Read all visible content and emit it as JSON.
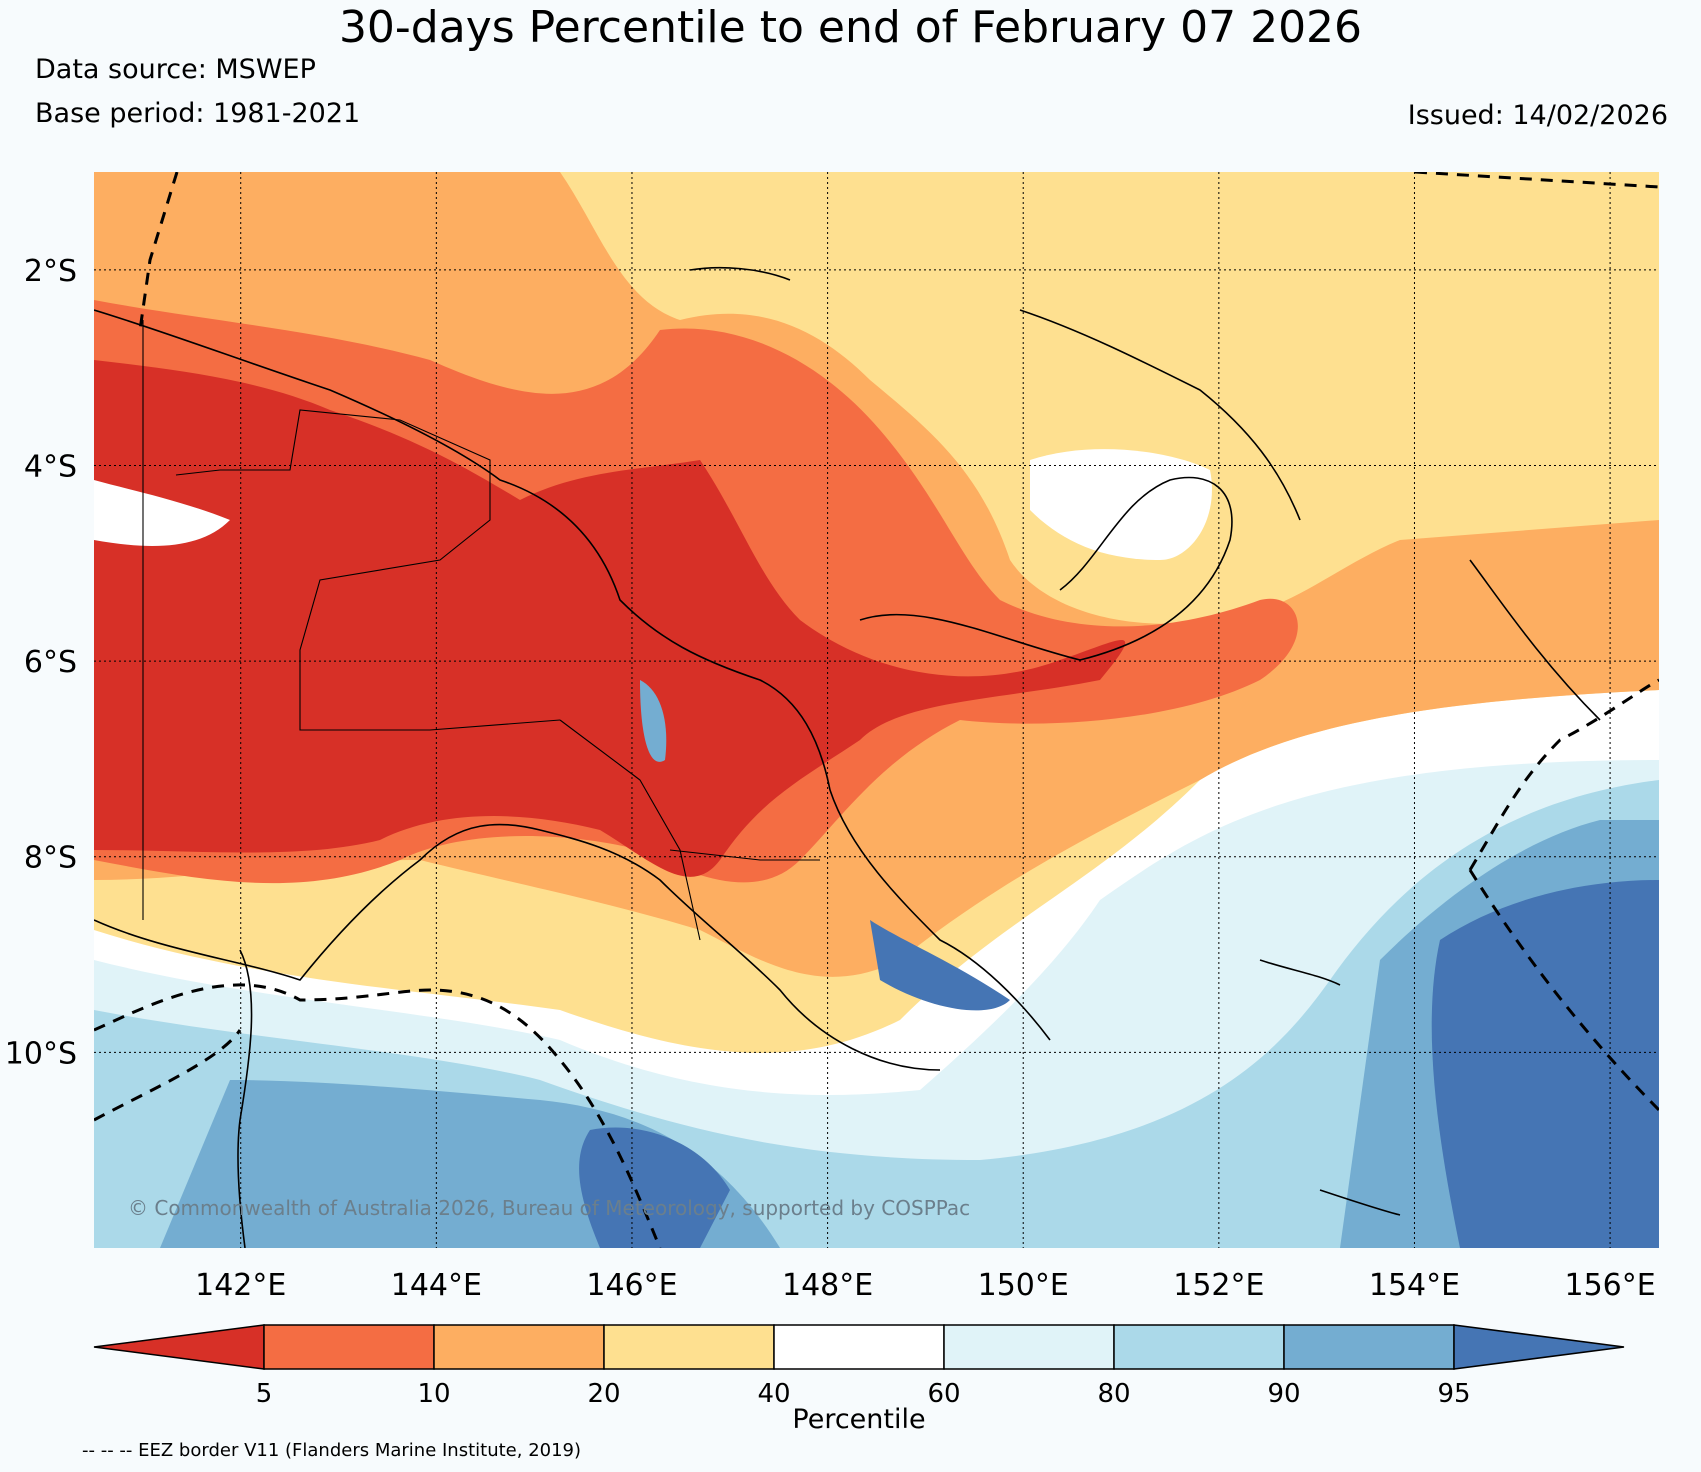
{
  "title": "30-days Percentile to end of February 07 2026",
  "data_source": "Data source: MSWEP",
  "base_period": "Base period: 1981-2021",
  "issued": "Issued: 14/02/2026",
  "copyright": "© Commonwealth of Australia 2026, Bureau of Meteorology, supported by COSPPac",
  "footnote": "-- -- -- EEZ border V11 (Flanders Marine Institute, 2019)",
  "map": {
    "lon_range": [
      140.5,
      156.5
    ],
    "lat_range": [
      -12,
      -1
    ],
    "lat_labels": [
      "2°S",
      "4°S",
      "6°S",
      "8°S",
      "10°S"
    ],
    "lat_values": [
      -2,
      -4,
      -6,
      -8,
      -10
    ],
    "lon_labels": [
      "142°E",
      "144°E",
      "146°E",
      "148°E",
      "150°E",
      "152°E",
      "154°E",
      "156°E"
    ],
    "lon_values": [
      142,
      144,
      146,
      148,
      150,
      152,
      154,
      156
    ],
    "gridlines": "dotted"
  },
  "colorbar": {
    "label": "Percentile",
    "ticks": [
      "5",
      "10",
      "20",
      "40",
      "60",
      "80",
      "90",
      "95"
    ],
    "colors": [
      "#d73027",
      "#f46d43",
      "#fdae61",
      "#fee090",
      "#ffffff",
      "#e0f3f8",
      "#abd9e9",
      "#74add1",
      "#4575b4"
    ]
  }
}
